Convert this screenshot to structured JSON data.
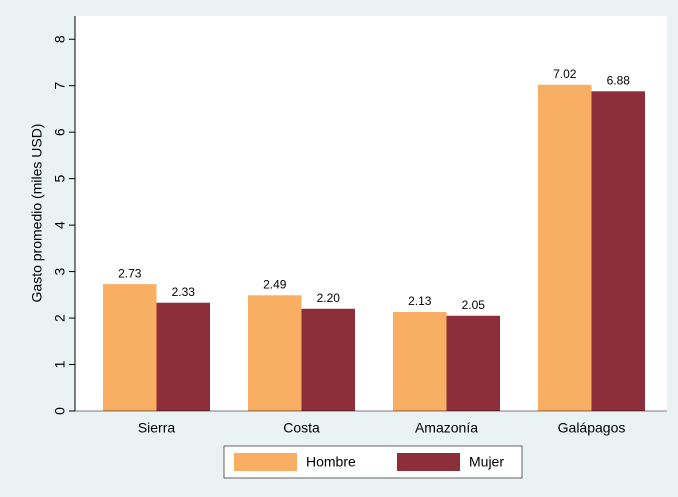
{
  "chart_data": {
    "type": "bar",
    "y_label": "Gasto promedio (miles USD)",
    "categories": [
      "Sierra",
      "Costa",
      "Amazonía",
      "Galápagos"
    ],
    "series": [
      {
        "name": "Hombre",
        "color": "#f8ae63",
        "values": [
          2.73,
          2.49,
          2.13,
          7.02
        ],
        "value_labels": [
          "2.73",
          "2.49",
          "2.13",
          "7.02"
        ]
      },
      {
        "name": "Mujer",
        "color": "#8c2f3b",
        "values": [
          2.33,
          2.2,
          2.05,
          6.88
        ],
        "value_labels": [
          "2.33",
          "2.20",
          "2.05",
          "6.88"
        ]
      }
    ],
    "ylim": [
      0,
      8.5
    ],
    "yticks": [
      0,
      1,
      2,
      3,
      4,
      5,
      6,
      7,
      8
    ],
    "grid": false
  }
}
